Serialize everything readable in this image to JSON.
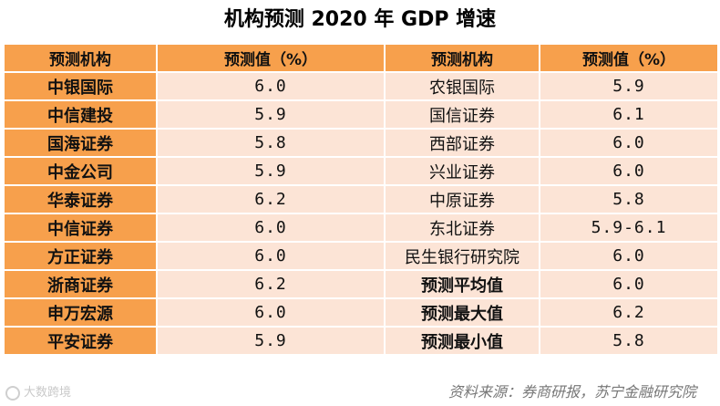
{
  "title": "机构预测 2020 年 GDP 增速",
  "headers": [
    "预测机构",
    "预测值（%）",
    "预测机构",
    "预测值（%）"
  ],
  "rows": [
    {
      "org1": "中银国际",
      "val1": "6.0",
      "org2": "农银国际",
      "val2": "5.9"
    },
    {
      "org1": "中信建投",
      "val1": "5.9",
      "org2": "国信证券",
      "val2": "6.1"
    },
    {
      "org1": "国海证券",
      "val1": "5.8",
      "org2": "西部证券",
      "val2": "6.0"
    },
    {
      "org1": "中金公司",
      "val1": "5.9",
      "org2": "兴业证券",
      "val2": "6.0"
    },
    {
      "org1": "华泰证券",
      "val1": "6.2",
      "org2": "中原证券",
      "val2": "5.8"
    },
    {
      "org1": "中信证券",
      "val1": "6.0",
      "org2": "东北证券",
      "val2": "5.9-6.1"
    },
    {
      "org1": "方正证券",
      "val1": "6.0",
      "org2": "民生银行研究院",
      "val2": "6.0"
    },
    {
      "org1": "浙商证券",
      "val1": "6.2",
      "org2": "预测平均值",
      "val2": "6.0"
    },
    {
      "org1": "申万宏源",
      "val1": "6.0",
      "org2": "预测最大值",
      "val2": "6.2"
    },
    {
      "org1": "平安证券",
      "val1": "5.9",
      "org2": "预测最小值",
      "val2": "5.8"
    }
  ],
  "summary_rows": [
    7,
    8,
    9
  ],
  "watermark": "大数跨境",
  "source": "资料来源：券商研报，苏宁金融研究院"
}
